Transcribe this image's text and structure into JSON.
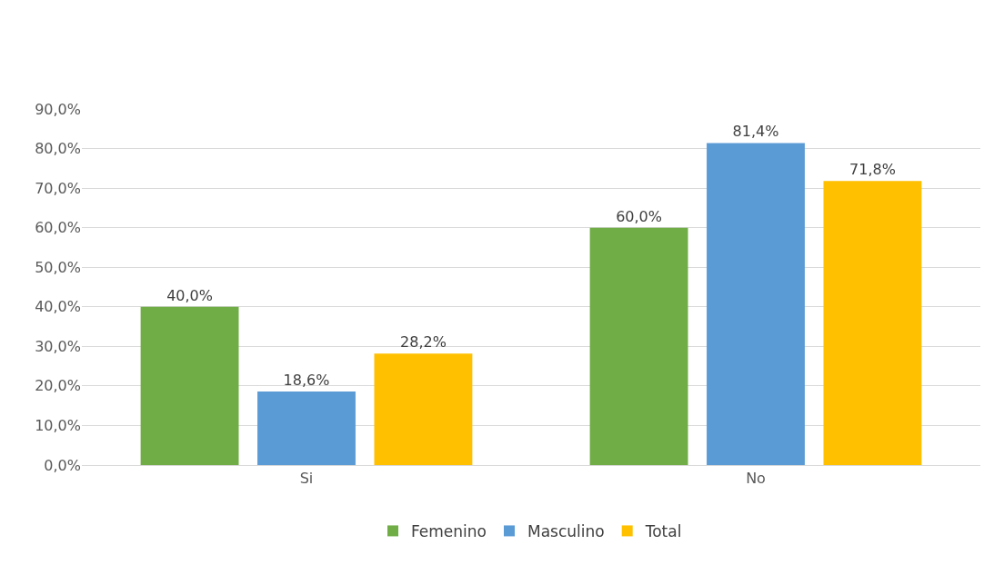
{
  "chart_data": {
    "type": "bar",
    "categories": [
      "Si",
      "No"
    ],
    "series": [
      {
        "name": "Femenino",
        "color": "#70ad47",
        "values": [
          40.0,
          60.0
        ],
        "value_labels": [
          "40,0%",
          "60,0%"
        ]
      },
      {
        "name": "Masculino",
        "color": "#5b9bd5",
        "values": [
          18.6,
          81.4
        ],
        "value_labels": [
          "18,6%",
          "81,4%"
        ]
      },
      {
        "name": "Total",
        "color": "#ffc000",
        "values": [
          28.2,
          71.8
        ],
        "value_labels": [
          "28,2%",
          "71,8%"
        ]
      }
    ],
    "ylim": [
      0,
      90
    ],
    "yticks": [
      {
        "value": 0,
        "label": "0,0%"
      },
      {
        "value": 10,
        "label": "10,0%"
      },
      {
        "value": 20,
        "label": "20,0%"
      },
      {
        "value": 30,
        "label": "30,0%"
      },
      {
        "value": 40,
        "label": "40,0%"
      },
      {
        "value": 50,
        "label": "50,0%"
      },
      {
        "value": 60,
        "label": "60,0%"
      },
      {
        "value": 70,
        "label": "70,0%"
      },
      {
        "value": 80,
        "label": "80,0%"
      },
      {
        "value": 90,
        "label": "90,0%"
      }
    ],
    "grid": "y",
    "legend": "bottom"
  }
}
